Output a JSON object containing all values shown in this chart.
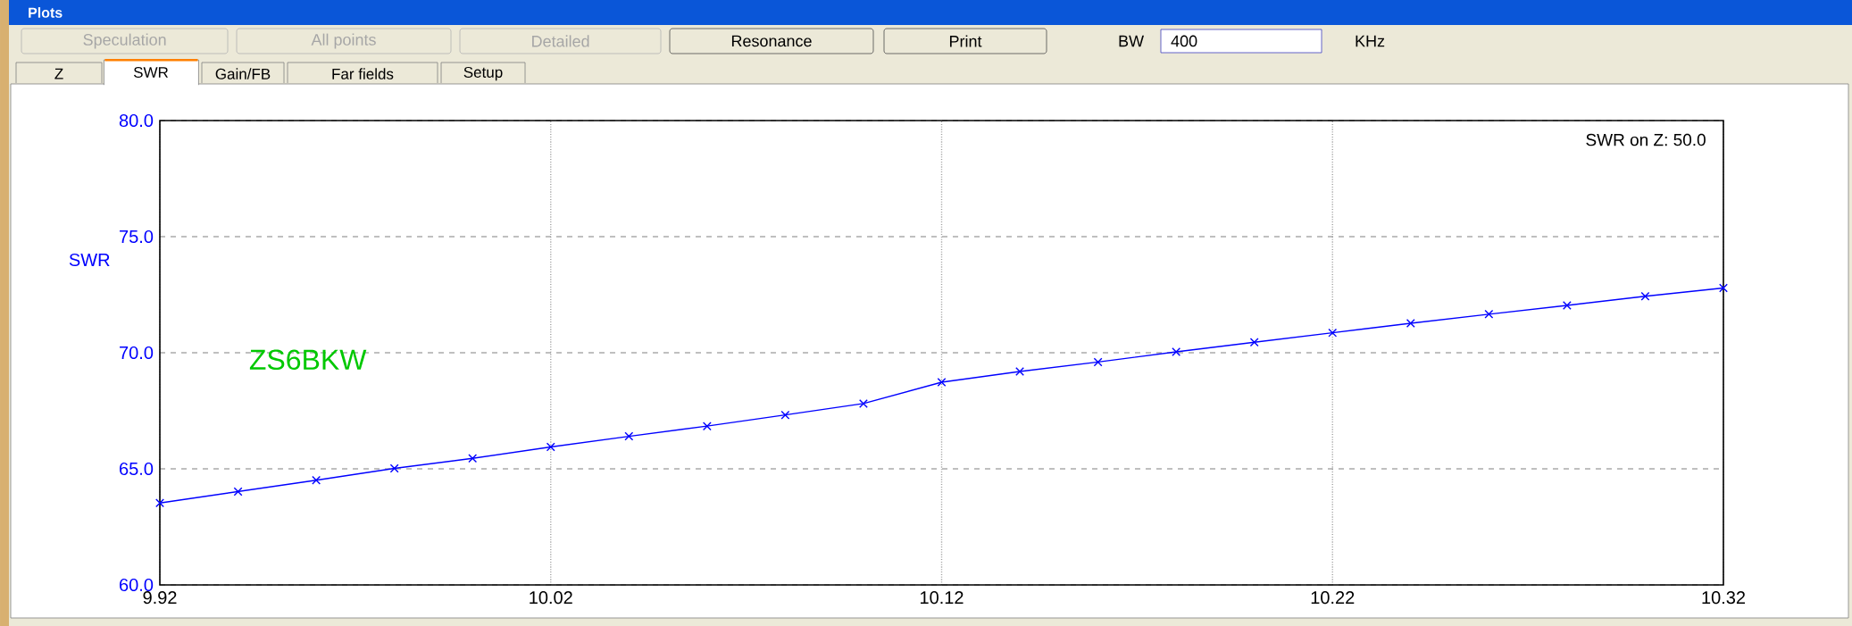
{
  "chart_data": {
    "type": "line",
    "title": "Plots",
    "ylabel": "SWR",
    "annotations": [
      "SWR on Z: 50.0",
      "ZS6BKW",
      "Speculation",
      "All points",
      "Detailed",
      "Resonance",
      "Print",
      "BW",
      "400",
      "KHz",
      "Z",
      "SWR",
      "Gain/FB",
      "Far fields",
      "Setup"
    ],
    "x": [
      9.92,
      9.94,
      9.96,
      9.98,
      10.0,
      10.02,
      10.04,
      10.06,
      10.08,
      10.1,
      10.12,
      10.14,
      10.16,
      10.18,
      10.2,
      10.22,
      10.24,
      10.26,
      10.28,
      10.3,
      10.32
    ],
    "series": [
      {
        "color": "#0000ff",
        "values": [
          63.53,
          64.02,
          64.51,
          65.02,
          65.45,
          65.94,
          66.4,
          66.84,
          67.32,
          67.81,
          68.73,
          69.19,
          69.6,
          70.04,
          70.45,
          70.86,
          71.27,
          71.66,
          72.04,
          72.43,
          72.79
        ]
      }
    ],
    "xlim": [
      9.92,
      10.32
    ],
    "ylim": [
      60,
      80
    ],
    "xticks": [
      9.92,
      10.02,
      10.12,
      10.22,
      10.32
    ],
    "yticks": [
      {
        "value": 60,
        "label": "60.0"
      },
      {
        "value": 65,
        "label": "65.0"
      },
      {
        "value": 70,
        "label": "70.0"
      },
      {
        "value": 75,
        "label": "75.0"
      },
      {
        "value": 80,
        "label": "80.0"
      }
    ],
    "grid": true,
    "marker": "cross",
    "line_style": "solid"
  }
}
